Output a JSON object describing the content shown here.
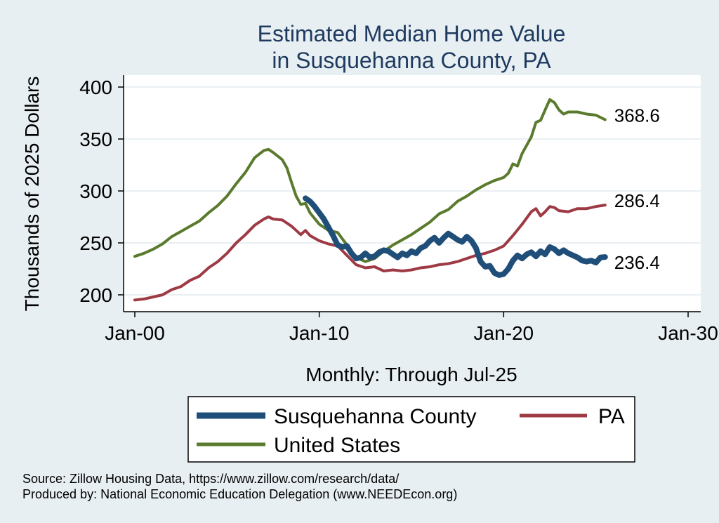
{
  "chart_data": {
    "type": "line",
    "title": [
      "Estimated Median Home Value",
      "in Susquehanna County, PA"
    ],
    "ylabel": "Thousands of 2025 Dollars",
    "xlabel": "Monthly: Through Jul-25",
    "xlim": [
      2000,
      2030
    ],
    "ylim": [
      190,
      410
    ],
    "yticks": [
      200,
      250,
      300,
      350,
      400
    ],
    "xticks": [
      {
        "value": 2000,
        "label": "Jan-00"
      },
      {
        "value": 2010,
        "label": "Jan-10"
      },
      {
        "value": 2020,
        "label": "Jan-20"
      },
      {
        "value": 2030,
        "label": "Jan-30"
      }
    ],
    "grid": true,
    "series": [
      {
        "name": "Susquehanna County",
        "color": "#1f4e79",
        "end_label": "236.4",
        "points": [
          [
            2009.25,
            293
          ],
          [
            2009.5,
            290
          ],
          [
            2009.75,
            285
          ],
          [
            2010.0,
            279
          ],
          [
            2010.25,
            273
          ],
          [
            2010.5,
            265
          ],
          [
            2010.75,
            257
          ],
          [
            2011.0,
            248
          ],
          [
            2011.25,
            246
          ],
          [
            2011.5,
            247
          ],
          [
            2011.75,
            240
          ],
          [
            2012.0,
            235
          ],
          [
            2012.25,
            236
          ],
          [
            2012.5,
            240
          ],
          [
            2012.75,
            236
          ],
          [
            2013.0,
            237
          ],
          [
            2013.25,
            241
          ],
          [
            2013.5,
            243
          ],
          [
            2013.75,
            242
          ],
          [
            2014.0,
            239
          ],
          [
            2014.25,
            236
          ],
          [
            2014.5,
            240
          ],
          [
            2014.75,
            238
          ],
          [
            2015.0,
            242
          ],
          [
            2015.25,
            240
          ],
          [
            2015.5,
            245
          ],
          [
            2015.75,
            247
          ],
          [
            2016.0,
            252
          ],
          [
            2016.25,
            255
          ],
          [
            2016.5,
            250
          ],
          [
            2016.75,
            255
          ],
          [
            2017.0,
            259
          ],
          [
            2017.25,
            256
          ],
          [
            2017.5,
            253
          ],
          [
            2017.75,
            251
          ],
          [
            2018.0,
            256
          ],
          [
            2018.25,
            252
          ],
          [
            2018.5,
            245
          ],
          [
            2018.75,
            232
          ],
          [
            2019.0,
            227
          ],
          [
            2019.25,
            228
          ],
          [
            2019.5,
            221
          ],
          [
            2019.75,
            219
          ],
          [
            2020.0,
            220
          ],
          [
            2020.25,
            225
          ],
          [
            2020.5,
            233
          ],
          [
            2020.75,
            238
          ],
          [
            2021.0,
            235
          ],
          [
            2021.25,
            239
          ],
          [
            2021.5,
            241
          ],
          [
            2021.75,
            237
          ],
          [
            2022.0,
            242
          ],
          [
            2022.25,
            239
          ],
          [
            2022.5,
            246
          ],
          [
            2022.75,
            244
          ],
          [
            2023.0,
            240
          ],
          [
            2023.25,
            243
          ],
          [
            2023.5,
            240
          ],
          [
            2023.75,
            238
          ],
          [
            2024.0,
            236
          ],
          [
            2024.25,
            233
          ],
          [
            2024.5,
            232
          ],
          [
            2024.75,
            233
          ],
          [
            2025.0,
            231
          ],
          [
            2025.25,
            236
          ],
          [
            2025.5,
            236.4
          ]
        ]
      },
      {
        "name": "PA",
        "color": "#9e3a44",
        "end_label": "286.4",
        "points": [
          [
            2000.0,
            195
          ],
          [
            2000.5,
            196
          ],
          [
            2001.0,
            198
          ],
          [
            2001.5,
            200
          ],
          [
            2002.0,
            205
          ],
          [
            2002.5,
            208
          ],
          [
            2003.0,
            214
          ],
          [
            2003.5,
            218
          ],
          [
            2004.0,
            226
          ],
          [
            2004.5,
            232
          ],
          [
            2005.0,
            240
          ],
          [
            2005.5,
            250
          ],
          [
            2006.0,
            258
          ],
          [
            2006.5,
            267
          ],
          [
            2007.0,
            273
          ],
          [
            2007.25,
            275
          ],
          [
            2007.5,
            273
          ],
          [
            2008.0,
            272
          ],
          [
            2008.5,
            266
          ],
          [
            2009.0,
            258
          ],
          [
            2009.25,
            262
          ],
          [
            2009.5,
            257
          ],
          [
            2010.0,
            252
          ],
          [
            2010.5,
            249
          ],
          [
            2011.0,
            247
          ],
          [
            2011.5,
            238
          ],
          [
            2012.0,
            229
          ],
          [
            2012.5,
            226
          ],
          [
            2013.0,
            227
          ],
          [
            2013.5,
            223
          ],
          [
            2014.0,
            224
          ],
          [
            2014.5,
            223
          ],
          [
            2015.0,
            224
          ],
          [
            2015.5,
            226
          ],
          [
            2016.0,
            227
          ],
          [
            2016.5,
            229
          ],
          [
            2017.0,
            230
          ],
          [
            2017.5,
            232
          ],
          [
            2018.0,
            235
          ],
          [
            2018.5,
            238
          ],
          [
            2019.0,
            240
          ],
          [
            2019.5,
            243
          ],
          [
            2020.0,
            247
          ],
          [
            2020.25,
            252
          ],
          [
            2020.5,
            257
          ],
          [
            2021.0,
            268
          ],
          [
            2021.5,
            280
          ],
          [
            2021.75,
            283
          ],
          [
            2022.0,
            276
          ],
          [
            2022.25,
            280
          ],
          [
            2022.5,
            285
          ],
          [
            2022.75,
            284
          ],
          [
            2023.0,
            281
          ],
          [
            2023.5,
            280
          ],
          [
            2024.0,
            283
          ],
          [
            2024.5,
            283
          ],
          [
            2025.0,
            285
          ],
          [
            2025.5,
            286.4
          ]
        ]
      },
      {
        "name": "United States",
        "color": "#5a7a2e",
        "end_label": "368.6",
        "points": [
          [
            2000.0,
            237
          ],
          [
            2000.5,
            240
          ],
          [
            2001.0,
            244
          ],
          [
            2001.5,
            249
          ],
          [
            2002.0,
            256
          ],
          [
            2002.5,
            261
          ],
          [
            2003.0,
            266
          ],
          [
            2003.5,
            271
          ],
          [
            2004.0,
            279
          ],
          [
            2004.5,
            286
          ],
          [
            2005.0,
            295
          ],
          [
            2005.5,
            307
          ],
          [
            2006.0,
            318
          ],
          [
            2006.5,
            332
          ],
          [
            2007.0,
            339
          ],
          [
            2007.25,
            340
          ],
          [
            2007.5,
            337
          ],
          [
            2008.0,
            330
          ],
          [
            2008.25,
            322
          ],
          [
            2008.5,
            308
          ],
          [
            2008.75,
            295
          ],
          [
            2009.0,
            287
          ],
          [
            2009.25,
            288
          ],
          [
            2009.5,
            279
          ],
          [
            2010.0,
            268
          ],
          [
            2010.5,
            262
          ],
          [
            2011.0,
            260
          ],
          [
            2011.5,
            248
          ],
          [
            2012.0,
            236
          ],
          [
            2012.5,
            232
          ],
          [
            2013.0,
            235
          ],
          [
            2013.5,
            242
          ],
          [
            2014.0,
            248
          ],
          [
            2014.5,
            253
          ],
          [
            2015.0,
            258
          ],
          [
            2015.5,
            264
          ],
          [
            2016.0,
            270
          ],
          [
            2016.5,
            278
          ],
          [
            2017.0,
            282
          ],
          [
            2017.5,
            290
          ],
          [
            2018.0,
            295
          ],
          [
            2018.5,
            301
          ],
          [
            2019.0,
            306
          ],
          [
            2019.5,
            310
          ],
          [
            2020.0,
            313
          ],
          [
            2020.25,
            317
          ],
          [
            2020.5,
            326
          ],
          [
            2020.75,
            324
          ],
          [
            2021.0,
            336
          ],
          [
            2021.5,
            352
          ],
          [
            2021.75,
            366
          ],
          [
            2022.0,
            368
          ],
          [
            2022.25,
            378
          ],
          [
            2022.5,
            388
          ],
          [
            2022.75,
            385
          ],
          [
            2023.0,
            378
          ],
          [
            2023.25,
            374
          ],
          [
            2023.5,
            376
          ],
          [
            2024.0,
            376
          ],
          [
            2024.5,
            374
          ],
          [
            2025.0,
            373
          ],
          [
            2025.5,
            368.6
          ]
        ]
      }
    ],
    "legend": {
      "entries": [
        "Susquehanna County",
        "PA",
        "United States"
      ],
      "placement": "bottom"
    }
  },
  "footer": {
    "source": "Source: Zillow Housing Data, https://www.zillow.com/research/data/",
    "produced": "Produced by: National Economic Education Delegation (www.NEEDEcon.org)"
  }
}
